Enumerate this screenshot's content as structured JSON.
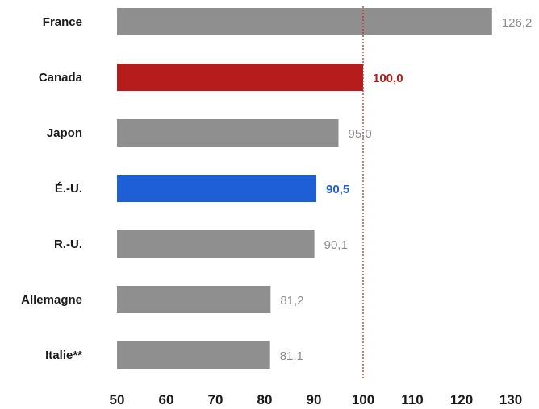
{
  "chart_data": {
    "type": "bar",
    "orientation": "horizontal",
    "categories": [
      "France",
      "Canada",
      "Japon",
      "É.-U.",
      "R.-U.",
      "Allemagne",
      "Italie**"
    ],
    "values": [
      126.2,
      100.0,
      95.0,
      90.5,
      90.1,
      81.2,
      81.1
    ],
    "value_labels": [
      "126,2",
      "100,0",
      "95,0",
      "90,5",
      "90,1",
      "81,2",
      "81,1"
    ],
    "bar_colors": [
      "#8f8f8f",
      "#b71c1c",
      "#8f8f8f",
      "#1f5fd6",
      "#8f8f8f",
      "#8f8f8f",
      "#8f8f8f"
    ],
    "label_colors": [
      "#8c8c8c",
      "#b71c1c",
      "#8c8c8c",
      "#1f5fd6",
      "#8c8c8c",
      "#8c8c8c",
      "#8c8c8c"
    ],
    "label_bold": [
      false,
      true,
      false,
      true,
      false,
      false,
      false
    ],
    "xlim": [
      50,
      130
    ],
    "xticks": [
      50,
      60,
      70,
      80,
      90,
      100,
      110,
      120,
      130
    ],
    "reference_line": {
      "value": 100,
      "color": "#c62828",
      "style": "dotted"
    },
    "grid": false,
    "title": "",
    "xlabel": "",
    "ylabel": ""
  }
}
